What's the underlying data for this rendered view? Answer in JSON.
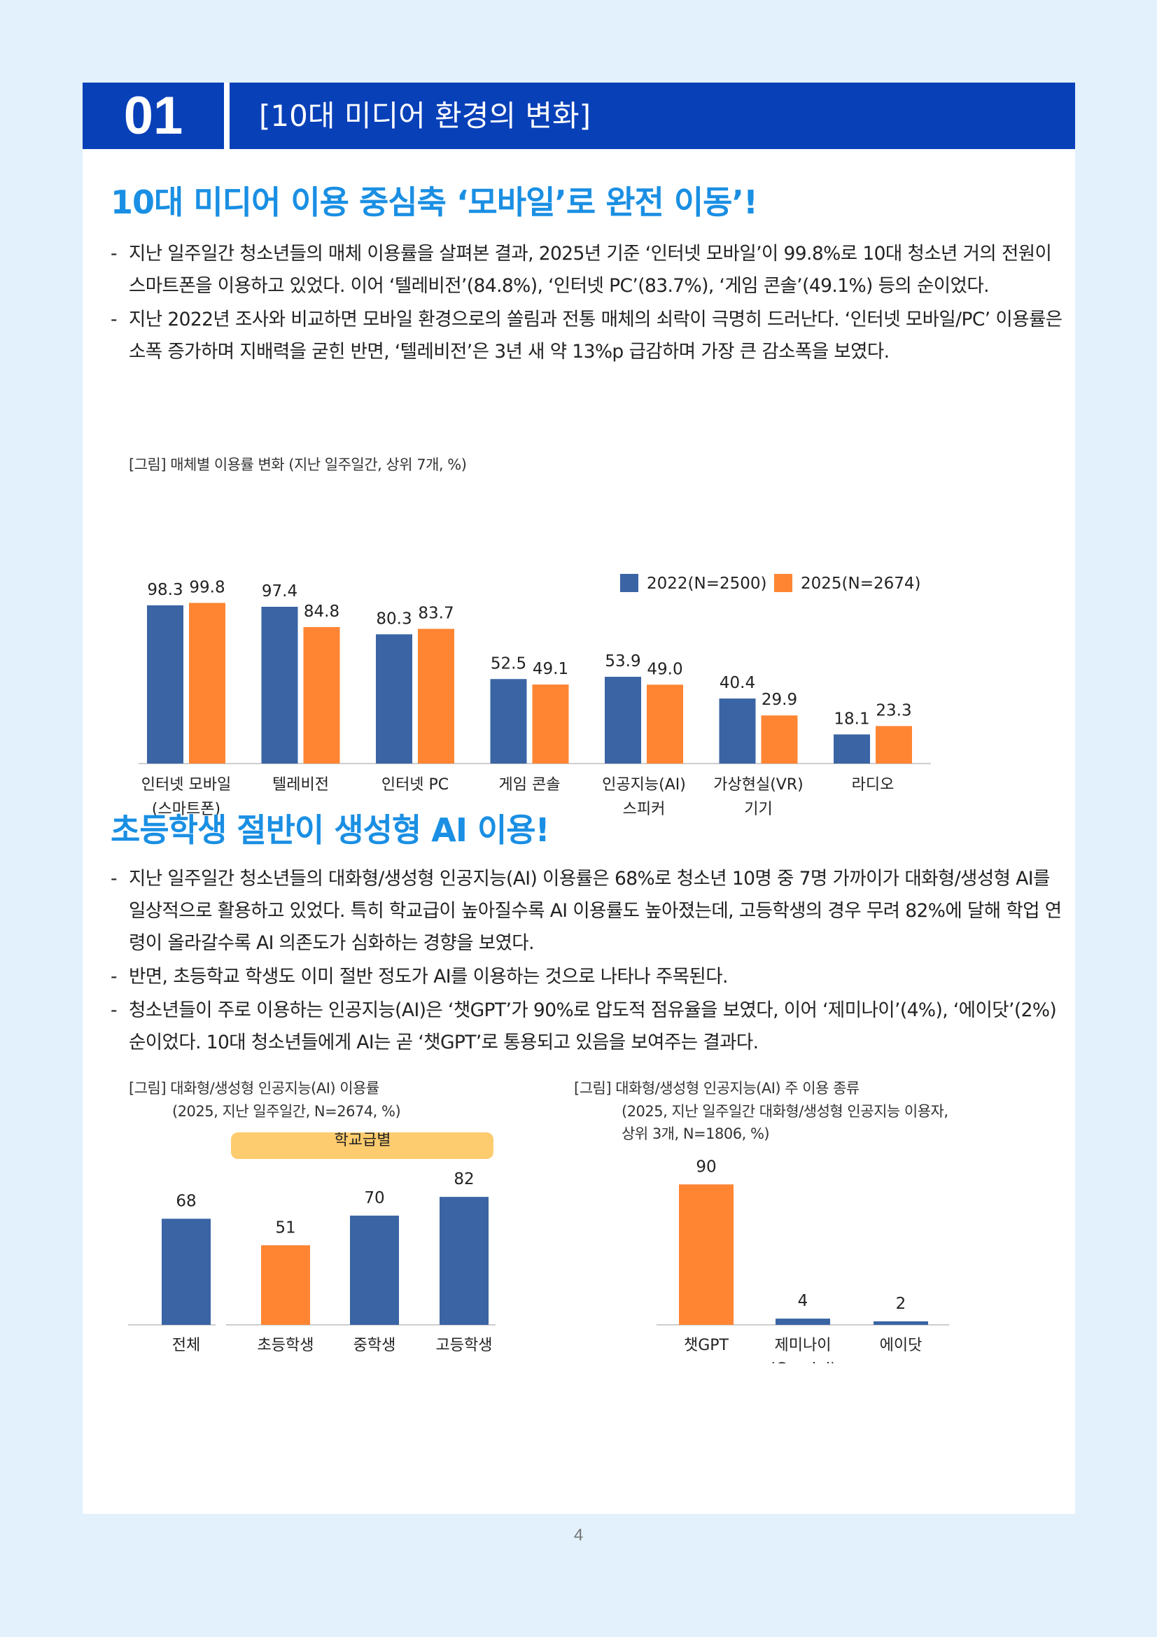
{
  "banner": {
    "number": "01",
    "title": "[10대 미디어 환경의 변화]"
  },
  "section1": {
    "heading": "10대 미디어 이용 중심축 ‘모바일’로 완전 이동’!",
    "bullets": [
      "지난 일주일간 청소년들의 매체 이용률을 살펴본 결과, 2025년 기준 ‘인터넷 모바일’이 99.8%로 10대 청소년 거의 전원이 스마트폰을 이용하고 있었다. 이어 ‘텔레비전’(84.8%), ‘인터넷 PC’(83.7%), ‘게임 콘솔’(49.1%) 등의 순이었다.",
      "지난 2022년 조사와 비교하면 모바일 환경으로의 쏠림과 전통 매체의 쇠락이 극명히 드러난다. ‘인터넷 모바일/PC’ 이용률은 소폭 증가하며 지배력을 굳힌 반면, ‘텔레비전’은 3년 새 약 13%p 급감하며 가장 큰 감소폭을 보였다."
    ],
    "caption": "[그림] 매체별 이용률 변화 (지난 일주일간, 상위 7개, %)"
  },
  "section2": {
    "heading": "초등학생 절반이 생성형 AI 이용!",
    "bullets": [
      "지난 일주일간 청소년들의 대화형/생성형 인공지능(AI) 이용률은 68%로 청소년 10명 중 7명 가까이가 대화형/생성형 AI를 일상적으로 활용하고 있었다. 특히 학교급이 높아질수록 AI 이용률도 높아졌는데, 고등학생의 경우 무려 82%에 달해 학업 연령이 올라갈수록 AI 의존도가 심화하는 경향을 보였다.",
      "반면, 초등학교 학생도 이미 절반 정도가 AI를 이용하는 것으로 나타나 주목된다.",
      "청소년들이 주로 이용하는 인공지능(AI)은 ‘챗GPT’가 90%로 압도적 점유율을 보였다, 이어 ‘제미나이’(4%), ‘에이닷’(2%) 순이었다. 10대 청소년들에게 AI는 곧 ‘챗GPT’로 통용되고 있음을 보여주는 결과다."
    ],
    "caption_left_1": "[그림] 대화형/생성형 인공지능(AI) 이용률",
    "caption_left_2": "(2025, 지난 일주일간, N=2674, %)",
    "caption_right_1": "[그림] 대화형/생성형 인공지능(AI) 주 이용 종류",
    "caption_right_2": "(2025, 지난 일주일간 대화형/생성형 인공지능 이용자,",
    "caption_right_3": "상위 3개, N=1806, %)"
  },
  "colors": {
    "blue": "#3a64a4",
    "orange": "#ff8533",
    "heading": "#1a8fe3",
    "banner": "#0840b8",
    "group_band": "#fdcc6e"
  },
  "chart_data": [
    {
      "type": "bar",
      "categories": [
        [
          "인터넷 모바일",
          "(스마트폰)"
        ],
        [
          "텔레비전"
        ],
        [
          "인터넷 PC"
        ],
        [
          "게임 콘솔"
        ],
        [
          "인공지능(AI)",
          "스피커"
        ],
        [
          "가상현실(VR)",
          "기기"
        ],
        [
          "라디오"
        ]
      ],
      "series": [
        {
          "name": "2022(N=2500)",
          "values": [
            98.3,
            97.4,
            80.3,
            52.5,
            53.9,
            40.4,
            18.1
          ]
        },
        {
          "name": "2025(N=2674)",
          "values": [
            99.8,
            84.8,
            83.7,
            49.1,
            49.0,
            29.9,
            23.3
          ]
        }
      ],
      "labels": [
        [
          "98.3",
          "97.4",
          "80.3",
          "52.5",
          "53.9",
          "40.4",
          "18.1"
        ],
        [
          "99.8",
          "84.8",
          "83.7",
          "49.1",
          "49.0",
          "29.9",
          "23.3"
        ]
      ],
      "ylim": [
        0,
        100
      ],
      "legend": "top-right"
    },
    {
      "type": "bar",
      "categories": [
        "전체",
        "초등학생",
        "중학생",
        "고등학생"
      ],
      "values": [
        68,
        51,
        70,
        82
      ],
      "bar_colors": [
        "blue",
        "orange",
        "blue",
        "blue"
      ],
      "group_label": "학교급별",
      "ylim": [
        0,
        100
      ]
    },
    {
      "type": "bar",
      "categories": [
        [
          "챗GPT"
        ],
        [
          "제미나이",
          "(Gemini)"
        ],
        [
          "에이닷"
        ]
      ],
      "values": [
        90,
        4,
        2
      ],
      "bar_colors": [
        "orange",
        "blue",
        "blue"
      ],
      "ylim": [
        0,
        100
      ]
    }
  ],
  "page_number": "4"
}
